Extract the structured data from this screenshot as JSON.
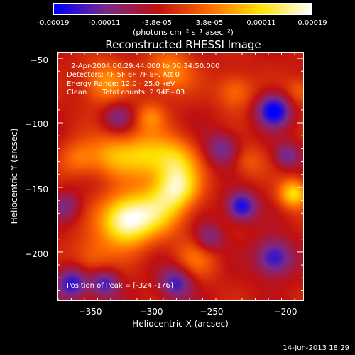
{
  "colorbar": {
    "tick_labels": [
      "-0.00019",
      "-0.00011",
      "-3.8e-05",
      "3.8e-05",
      "0.00011",
      "0.00019"
    ],
    "tick_values": [
      -0.00019,
      -0.00011,
      -3.8e-05,
      3.8e-05,
      0.00011,
      0.00019
    ],
    "range": [
      -0.00019,
      0.00019
    ],
    "unit_label": "(photons cm⁻² s⁻¹ asec⁻²)",
    "colors": [
      "#0000ff",
      "#7a2a8a",
      "#c01010",
      "#ff6a00",
      "#ffe000",
      "#ffffff"
    ]
  },
  "chart_data": {
    "type": "heatmap",
    "title": "Reconstructed RHESSI Image",
    "xlabel": "Heliocentric X (arcsec)",
    "ylabel": "Heliocentric Y (arcsec)",
    "xlim": [
      -376,
      -188
    ],
    "ylim": [
      -238,
      -45
    ],
    "x_ticks": [
      -350,
      -300,
      -250,
      -200
    ],
    "y_ticks": [
      -50,
      -100,
      -150,
      -200
    ],
    "x_tick_labels": [
      "−350",
      "−300",
      "−250",
      "−200"
    ],
    "y_tick_labels": [
      "−50",
      "−100",
      "−150",
      "−200"
    ],
    "peak": [
      -324,
      -176
    ]
  },
  "annotations": {
    "time_range": "2-Apr-2004 00:29:44.000 to 00:34:50.000",
    "detectors": "Detectors: 4F 5F 6F 7F 8F, Att 0",
    "energy_range": "Energy Range: 12.0 - 25.0 keV",
    "clean": "Clean",
    "total_counts": "Total counts: 2.94E+03",
    "peak_position": "Position of Peak = [-324,-176]"
  },
  "footer": {
    "timestamp": "14-Jun-2013 18:29"
  }
}
